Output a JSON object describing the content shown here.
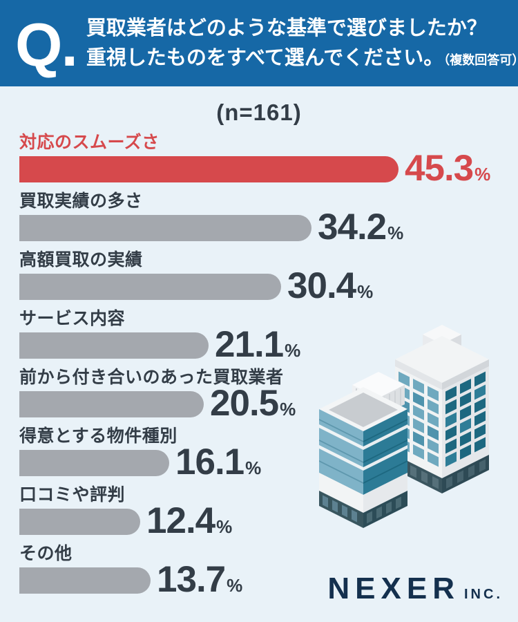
{
  "header": {
    "q_mark": "Q.",
    "question_line1": "買取業者はどのような基準で選びましたか？",
    "question_line2": "重視したものをすべて選んでください。",
    "question_note": "（複数回答可）"
  },
  "chart_data": {
    "type": "bar",
    "orientation": "horizontal",
    "title": "買取業者はどのような基準で選びましたか？重視したものをすべて選んでください。（複数回答可）",
    "sample_label": "(n=161)",
    "n": 161,
    "unit": "%",
    "categories": [
      "対応のスムーズさ",
      "買取実績の多さ",
      "高額買取の実績",
      "サービス内容",
      "前から付き合いのあった買取業者",
      "得意とする物件種別",
      "口コミや評判",
      "その他"
    ],
    "values": [
      45.3,
      34.2,
      30.4,
      21.1,
      20.5,
      16.1,
      12.4,
      13.7
    ],
    "highlight_index": 0,
    "value_labels_shown": true,
    "xlim": [
      0,
      50
    ],
    "grid": false,
    "legend": "none"
  },
  "footer": {
    "brand": "NEXER",
    "brand_suffix": "INC."
  },
  "illustration": {
    "name": "isometric-office-buildings"
  },
  "theme": {
    "header_bg": "#1668a6",
    "page_bg": "#e9f2f8",
    "accent_red": "#d6494c",
    "gray_bar": "#a4a8ae",
    "ink": "#333d47",
    "brand_navy": "#14304e"
  }
}
